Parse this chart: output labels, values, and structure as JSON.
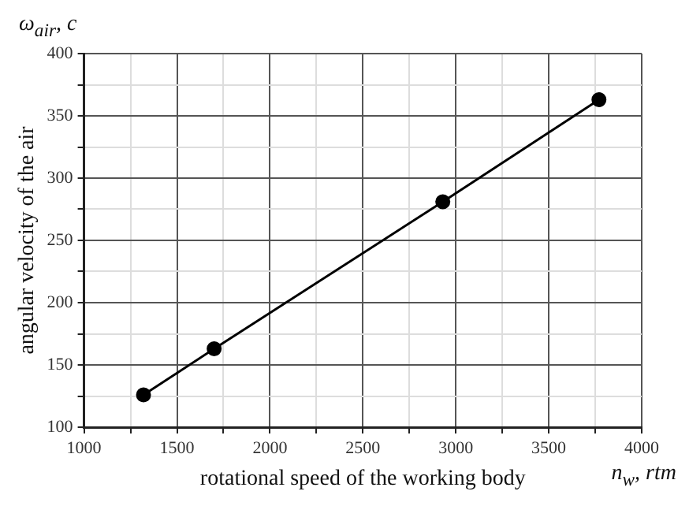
{
  "chart_data": {
    "type": "line",
    "xlabel": "rotational speed of the working body",
    "ylabel": "angular velocity of the air",
    "annotations": [
      "ω$_{air}$, c",
      "n$_{w}$, rtm"
    ],
    "x": [
      1320,
      1700,
      2930,
      3770
    ],
    "series": [
      {
        "color": "#000000",
        "values": [
          126,
          163,
          281,
          363
        ]
      }
    ],
    "xlim": [
      1000,
      4000
    ],
    "xticks": [
      1000,
      {
        "value": 1250,
        "label": null
      },
      1500,
      {
        "value": 1750,
        "label": null
      },
      2000,
      {
        "value": 2250,
        "label": null
      },
      2500,
      {
        "value": 2750,
        "label": null
      },
      3000,
      {
        "value": 3250,
        "label": null
      },
      3500,
      {
        "value": 3750,
        "label": null
      },
      4000
    ],
    "ylim": [
      100,
      400
    ],
    "yticks": [
      100,
      {
        "value": 125,
        "label": null
      },
      150,
      {
        "value": 175,
        "label": null
      },
      200,
      {
        "value": 225,
        "label": null
      },
      250,
      {
        "value": 275,
        "label": null
      },
      300,
      {
        "value": 325,
        "label": null
      },
      350,
      {
        "value": 375,
        "label": null
      },
      400
    ],
    "grid": true,
    "legend": false,
    "marker": "circle",
    "line_style": "solid"
  }
}
